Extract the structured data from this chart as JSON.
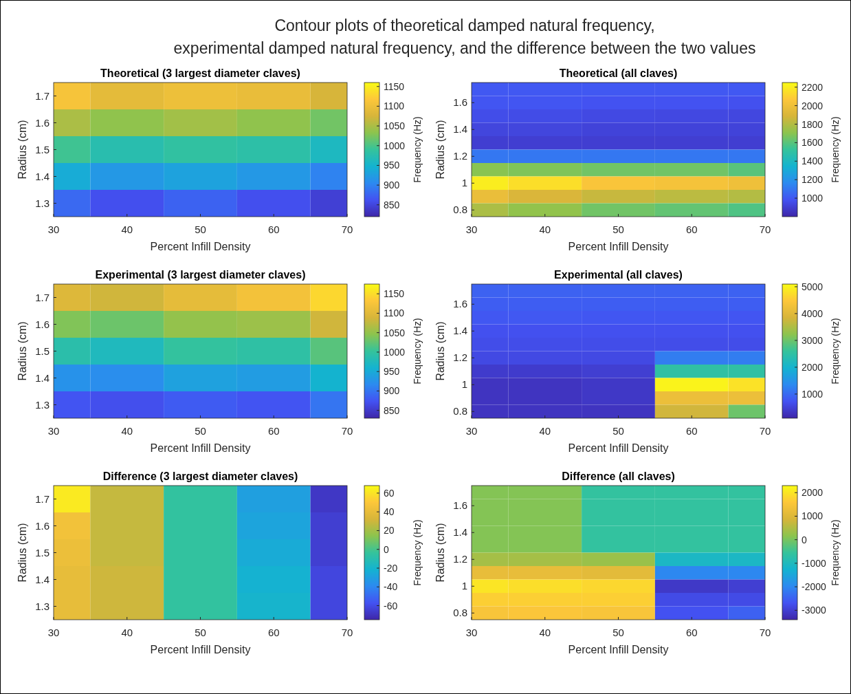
{
  "chart_data": [
    {
      "type": "heatmap",
      "title": "Theoretical (3 largest diameter claves)",
      "xlabel": "Percent Infill Density",
      "ylabel": "Radius (cm)",
      "clabel": "Frequency (Hz)",
      "annotations": [
        "Contour plots of theoretical damped natural frequency,\nexperimental damped natural frequency, and the difference between the two values"
      ],
      "categories": [
        "30",
        "40",
        "50",
        "60",
        "70"
      ],
      "y_categories": [
        "1.7",
        "1.6",
        "1.5",
        "1.4",
        "1.3"
      ],
      "clim": [
        820,
        1160
      ],
      "cticks": [
        850,
        900,
        950,
        1000,
        1050,
        1100,
        1150
      ],
      "cells": [
        [
          1110,
          1090,
          1100,
          1095,
          1075
        ],
        [
          1050,
          1035,
          1045,
          1035,
          1020
        ],
        [
          995,
          975,
          985,
          980,
          960
        ],
        [
          940,
          920,
          930,
          920,
          900
        ],
        [
          880,
          860,
          875,
          860,
          845
        ]
      ]
    },
    {
      "type": "heatmap",
      "title": "Theoretical (all claves)",
      "xlabel": "Percent Infill Density",
      "ylabel": "Radius (cm)",
      "clabel": "Frequency (Hz)",
      "categories": [
        "30",
        "40",
        "50",
        "60",
        "70"
      ],
      "y_categories": [
        null,
        "1.6",
        null,
        "1.4",
        null,
        "1.2",
        null,
        "1",
        null,
        "0.8"
      ],
      "clim": [
        800,
        2250
      ],
      "cticks": [
        1000,
        1200,
        1400,
        1600,
        1800,
        2000,
        2200
      ],
      "cells": [
        [
          1000,
          1000,
          1000,
          1000,
          1000
        ],
        [
          990,
          990,
          980,
          980,
          975
        ],
        [
          960,
          955,
          945,
          940,
          935
        ],
        [
          930,
          930,
          920,
          920,
          920
        ],
        [
          900,
          900,
          900,
          900,
          900
        ],
        [
          1100,
          1100,
          1100,
          1100,
          1100
        ],
        [
          1700,
          1680,
          1650,
          1650,
          1600
        ],
        [
          2200,
          2150,
          2050,
          2030,
          2000
        ],
        [
          1980,
          1900,
          1850,
          1820,
          1800
        ],
        [
          1780,
          1720,
          1650,
          1620,
          1580
        ]
      ]
    },
    {
      "type": "heatmap",
      "title": "Experimental (3 largest diameter claves)",
      "xlabel": "Percent Infill Density",
      "ylabel": "Radius (cm)",
      "clabel": "Frequency (Hz)",
      "categories": [
        "30",
        "40",
        "50",
        "60",
        "70"
      ],
      "y_categories": [
        "1.7",
        "1.6",
        "1.5",
        "1.4",
        "1.3"
      ],
      "clim": [
        830,
        1175
      ],
      "cticks": [
        850,
        900,
        950,
        1000,
        1050,
        1100,
        1150
      ],
      "cells": [
        [
          1095,
          1085,
          1105,
          1120,
          1145
        ],
        [
          1040,
          1030,
          1050,
          1055,
          1085
        ],
        [
          990,
          975,
          1000,
          995,
          1020
        ],
        [
          925,
          920,
          940,
          935,
          960
        ],
        [
          875,
          870,
          880,
          875,
          900
        ]
      ]
    },
    {
      "type": "heatmap",
      "title": "Experimental (all claves)",
      "xlabel": "Percent Infill Density",
      "ylabel": "Radius (cm)",
      "clabel": "Frequency (Hz)",
      "categories": [
        "30",
        "40",
        "50",
        "60",
        "70"
      ],
      "y_categories": [
        null,
        "1.6",
        null,
        "1.4",
        null,
        "1.2",
        null,
        "1",
        null,
        "0.8"
      ],
      "clim": [
        100,
        5100
      ],
      "cticks": [
        1000,
        2000,
        3000,
        4000,
        5000
      ],
      "cells": [
        [
          900,
          900,
          900,
          900,
          900
        ],
        [
          850,
          850,
          850,
          850,
          850
        ],
        [
          780,
          790,
          770,
          770,
          760
        ],
        [
          700,
          700,
          700,
          700,
          700
        ],
        [
          650,
          650,
          650,
          650,
          650
        ],
        [
          600,
          600,
          600,
          1200,
          1200
        ],
        [
          400,
          400,
          450,
          2500,
          2500
        ],
        [
          300,
          300,
          350,
          5000,
          4800
        ],
        [
          300,
          300,
          350,
          4200,
          4200
        ],
        [
          300,
          300,
          300,
          3800,
          3000
        ]
      ]
    },
    {
      "type": "heatmap",
      "title": "Difference (3 largest diameter claves)",
      "xlabel": "Percent Infill Density",
      "ylabel": "Radius (cm)",
      "clabel": "Frequency (Hz)",
      "categories": [
        "30",
        "40",
        "50",
        "60",
        "70"
      ],
      "y_categories": [
        "1.7",
        "1.6",
        "1.5",
        "1.4",
        "1.3"
      ],
      "clim": [
        -75,
        68
      ],
      "cticks": [
        -60,
        -40,
        -20,
        0,
        20,
        40,
        60
      ],
      "cells": [
        [
          62,
          28,
          -5,
          -30,
          -68
        ],
        [
          45,
          28,
          -5,
          -28,
          -65
        ],
        [
          42,
          28,
          -5,
          -25,
          -65
        ],
        [
          40,
          30,
          -5,
          -22,
          -62
        ],
        [
          40,
          30,
          -5,
          -20,
          -62
        ]
      ]
    },
    {
      "type": "heatmap",
      "title": "Difference (all claves)",
      "xlabel": "Percent Infill Density",
      "ylabel": "Radius (cm)",
      "clabel": "Frequency (Hz)",
      "categories": [
        "30",
        "40",
        "50",
        "60",
        "70"
      ],
      "y_categories": [
        null,
        "1.6",
        null,
        "1.4",
        null,
        "1.2",
        null,
        "1",
        null,
        "0.8"
      ],
      "clim": [
        -3400,
        2300
      ],
      "cticks": [
        -3000,
        -2000,
        -1000,
        0,
        1000,
        2000
      ],
      "cells": [
        [
          100,
          100,
          -600,
          -600,
          -600
        ],
        [
          100,
          100,
          -600,
          -600,
          -600
        ],
        [
          100,
          100,
          -600,
          -600,
          -600
        ],
        [
          100,
          100,
          -600,
          -600,
          -600
        ],
        [
          100,
          100,
          -600,
          -600,
          -600
        ],
        [
          400,
          400,
          300,
          -1100,
          -1100
        ],
        [
          1200,
          1200,
          1100,
          -2000,
          -2000
        ],
        [
          2000,
          1900,
          1800,
          -3100,
          -3000
        ],
        [
          1700,
          1700,
          1700,
          -2800,
          -2800
        ],
        [
          1500,
          1550,
          1500,
          -2700,
          -2500
        ]
      ]
    }
  ]
}
